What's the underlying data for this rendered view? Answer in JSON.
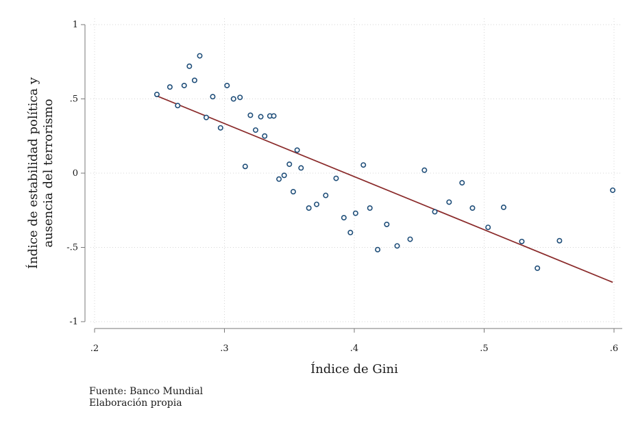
{
  "chart_data": {
    "type": "scatter",
    "xlabel": "Índice de Gini",
    "ylabel_lines": [
      "Índice de estabilidad política y",
      "ausencia del terrorismo"
    ],
    "xlim": [
      0.2,
      0.6
    ],
    "ylim": [
      -1,
      1
    ],
    "x_ticks": [
      0.2,
      0.3,
      0.4,
      0.5,
      0.6
    ],
    "x_tick_labels": [
      ".2",
      ".3",
      ".4",
      ".5",
      ".6"
    ],
    "y_ticks": [
      1,
      0.5,
      0,
      -0.5,
      -1
    ],
    "y_tick_labels": [
      "1",
      ".5",
      "0",
      "-.5",
      "-1"
    ],
    "grid": true,
    "marker_color": "#1f4e79",
    "fit_line_color": "#8b2c2c",
    "series": [
      {
        "points": [
          [
            0.248,
            0.53
          ],
          [
            0.258,
            0.58
          ],
          [
            0.264,
            0.455
          ],
          [
            0.269,
            0.59
          ],
          [
            0.273,
            0.72
          ],
          [
            0.277,
            0.625
          ],
          [
            0.281,
            0.79
          ],
          [
            0.286,
            0.375
          ],
          [
            0.291,
            0.515
          ],
          [
            0.297,
            0.305
          ],
          [
            0.302,
            0.59
          ],
          [
            0.307,
            0.5
          ],
          [
            0.312,
            0.51
          ],
          [
            0.316,
            0.045
          ],
          [
            0.32,
            0.39
          ],
          [
            0.324,
            0.29
          ],
          [
            0.328,
            0.38
          ],
          [
            0.331,
            0.25
          ],
          [
            0.335,
            0.385
          ],
          [
            0.338,
            0.385
          ],
          [
            0.342,
            -0.04
          ],
          [
            0.346,
            -0.015
          ],
          [
            0.35,
            0.06
          ],
          [
            0.353,
            -0.125
          ],
          [
            0.356,
            0.155
          ],
          [
            0.359,
            0.035
          ],
          [
            0.365,
            -0.235
          ],
          [
            0.371,
            -0.21
          ],
          [
            0.378,
            -0.15
          ],
          [
            0.386,
            -0.035
          ],
          [
            0.392,
            -0.3
          ],
          [
            0.397,
            -0.4
          ],
          [
            0.401,
            -0.27
          ],
          [
            0.407,
            0.055
          ],
          [
            0.412,
            -0.235
          ],
          [
            0.418,
            -0.515
          ],
          [
            0.425,
            -0.345
          ],
          [
            0.433,
            -0.49
          ],
          [
            0.443,
            -0.445
          ],
          [
            0.454,
            0.02
          ],
          [
            0.462,
            -0.26
          ],
          [
            0.473,
            -0.195
          ],
          [
            0.483,
            -0.065
          ],
          [
            0.491,
            -0.235
          ],
          [
            0.503,
            -0.365
          ],
          [
            0.515,
            -0.23
          ],
          [
            0.529,
            -0.46
          ],
          [
            0.541,
            -0.64
          ],
          [
            0.558,
            -0.455
          ],
          [
            0.599,
            -0.115
          ]
        ]
      }
    ],
    "fit_line": {
      "x": [
        0.248,
        0.599
      ],
      "y": [
        0.52,
        -0.735
      ]
    }
  },
  "notes": [
    "Fuente: Banco Mundial",
    "Elaboración propia"
  ]
}
